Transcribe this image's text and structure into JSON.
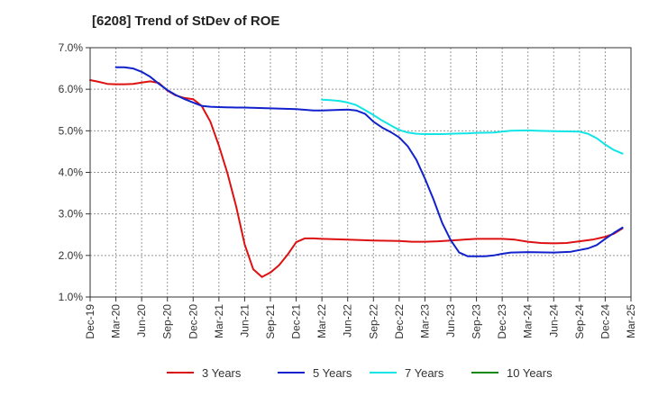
{
  "chart_data": {
    "type": "line",
    "title": "[6208]  Trend of StDev of ROE",
    "xlabel": "",
    "ylabel": "",
    "x_categories": [
      "Dec-19",
      "Mar-20",
      "Jun-20",
      "Sep-20",
      "Dec-20",
      "Mar-21",
      "Jun-21",
      "Sep-21",
      "Dec-21",
      "Mar-22",
      "Jun-22",
      "Sep-22",
      "Dec-22",
      "Mar-23",
      "Jun-23",
      "Sep-23",
      "Dec-23",
      "Mar-24",
      "Jun-24",
      "Sep-24",
      "Dec-24",
      "Mar-25"
    ],
    "y_ticks": [
      "1.0%",
      "2.0%",
      "3.0%",
      "4.0%",
      "5.0%",
      "6.0%",
      "7.0%"
    ],
    "ylim": [
      1.0,
      7.0
    ],
    "grid": "horizontal-dashed",
    "legend_position": "bottom",
    "series": [
      {
        "name": "3 Years",
        "color": "#dd1111",
        "values": [
          [
            0,
            6.22
          ],
          [
            0.33,
            6.18
          ],
          [
            0.67,
            6.13
          ],
          [
            1,
            6.12
          ],
          [
            1.33,
            6.12
          ],
          [
            1.67,
            6.13
          ],
          [
            2,
            6.16
          ],
          [
            2.33,
            6.19
          ],
          [
            2.67,
            6.15
          ],
          [
            3,
            5.97
          ],
          [
            3.33,
            5.85
          ],
          [
            3.67,
            5.79
          ],
          [
            4,
            5.76
          ],
          [
            4.33,
            5.6
          ],
          [
            4.67,
            5.22
          ],
          [
            5,
            4.64
          ],
          [
            5.33,
            3.98
          ],
          [
            5.67,
            3.18
          ],
          [
            6,
            2.27
          ],
          [
            6.33,
            1.67
          ],
          [
            6.67,
            1.48
          ],
          [
            7,
            1.59
          ],
          [
            7.33,
            1.76
          ],
          [
            7.67,
            2.02
          ],
          [
            8,
            2.32
          ],
          [
            8.33,
            2.41
          ],
          [
            8.67,
            2.41
          ],
          [
            9,
            2.4
          ],
          [
            10,
            2.38
          ],
          [
            11,
            2.36
          ],
          [
            12,
            2.35
          ],
          [
            12.5,
            2.33
          ],
          [
            13,
            2.33
          ],
          [
            13.5,
            2.34
          ],
          [
            14,
            2.36
          ],
          [
            14.5,
            2.38
          ],
          [
            15,
            2.4
          ],
          [
            16,
            2.4
          ],
          [
            16.5,
            2.38
          ],
          [
            17,
            2.33
          ],
          [
            17.5,
            2.3
          ],
          [
            18,
            2.29
          ],
          [
            18.5,
            2.3
          ],
          [
            19,
            2.34
          ],
          [
            19.5,
            2.38
          ],
          [
            20,
            2.45
          ],
          [
            20.33,
            2.52
          ],
          [
            20.67,
            2.65
          ]
        ]
      },
      {
        "name": "5 Years",
        "color": "#1122cc",
        "values": [
          [
            1,
            6.53
          ],
          [
            1.33,
            6.53
          ],
          [
            1.67,
            6.5
          ],
          [
            2,
            6.42
          ],
          [
            2.33,
            6.3
          ],
          [
            2.67,
            6.13
          ],
          [
            3,
            5.98
          ],
          [
            3.33,
            5.86
          ],
          [
            3.67,
            5.76
          ],
          [
            4,
            5.68
          ],
          [
            4.33,
            5.6
          ],
          [
            4.67,
            5.58
          ],
          [
            5,
            5.57
          ],
          [
            5.67,
            5.56
          ],
          [
            6,
            5.56
          ],
          [
            7,
            5.54
          ],
          [
            8,
            5.52
          ],
          [
            8.67,
            5.49
          ],
          [
            9,
            5.49
          ],
          [
            10,
            5.51
          ],
          [
            10.33,
            5.49
          ],
          [
            10.67,
            5.41
          ],
          [
            11,
            5.22
          ],
          [
            11.33,
            5.08
          ],
          [
            11.67,
            4.97
          ],
          [
            12,
            4.84
          ],
          [
            12.33,
            4.63
          ],
          [
            12.67,
            4.3
          ],
          [
            13,
            3.85
          ],
          [
            13.33,
            3.35
          ],
          [
            13.67,
            2.78
          ],
          [
            14,
            2.37
          ],
          [
            14.33,
            2.07
          ],
          [
            14.67,
            1.98
          ],
          [
            15,
            1.98
          ],
          [
            15.33,
            1.98
          ],
          [
            15.67,
            2.0
          ],
          [
            16,
            2.04
          ],
          [
            16.33,
            2.07
          ],
          [
            17,
            2.08
          ],
          [
            18,
            2.07
          ],
          [
            18.67,
            2.09
          ],
          [
            19,
            2.13
          ],
          [
            19.33,
            2.17
          ],
          [
            19.67,
            2.25
          ],
          [
            20,
            2.4
          ],
          [
            20.33,
            2.54
          ],
          [
            20.67,
            2.67
          ]
        ]
      },
      {
        "name": "7 Years",
        "color": "#11e5e5",
        "values": [
          [
            9,
            5.75
          ],
          [
            9.33,
            5.74
          ],
          [
            9.67,
            5.72
          ],
          [
            10,
            5.68
          ],
          [
            10.33,
            5.62
          ],
          [
            10.67,
            5.5
          ],
          [
            11,
            5.38
          ],
          [
            11.33,
            5.25
          ],
          [
            11.67,
            5.13
          ],
          [
            12,
            5.02
          ],
          [
            12.33,
            4.96
          ],
          [
            12.67,
            4.93
          ],
          [
            13,
            4.92
          ],
          [
            13.67,
            4.92
          ],
          [
            14,
            4.93
          ],
          [
            14.67,
            4.94
          ],
          [
            15,
            4.95
          ],
          [
            15.67,
            4.96
          ],
          [
            16,
            4.98
          ],
          [
            16.33,
            5.0
          ],
          [
            17,
            5.01
          ],
          [
            17.33,
            5.0
          ],
          [
            18,
            4.99
          ],
          [
            19,
            4.98
          ],
          [
            19.33,
            4.93
          ],
          [
            19.67,
            4.82
          ],
          [
            20,
            4.67
          ],
          [
            20.33,
            4.54
          ],
          [
            20.67,
            4.45
          ]
        ]
      },
      {
        "name": "10 Years",
        "color": "#118811",
        "values": []
      }
    ]
  }
}
